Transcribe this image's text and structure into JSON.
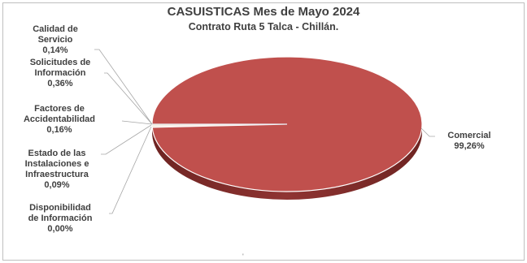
{
  "chart_data": {
    "type": "pie",
    "title": "CASUISTICAS Mes de Mayo 2024",
    "subtitle": "Contrato Ruta 5 Talca - Chillán.",
    "slices": [
      {
        "name": "Comercial",
        "value": 99.26,
        "label": "99,26%",
        "color": "#c0504d"
      },
      {
        "name": "Calidad de Servicio",
        "value": 0.14,
        "label": "0,14%",
        "color": "#f2dcdb"
      },
      {
        "name": "Solicitudes de Información",
        "value": 0.36,
        "label": "0,36%",
        "color": "#f5e4d6"
      },
      {
        "name": "Factores de Accidentabilidad",
        "value": 0.16,
        "label": "0,16%",
        "color": "#e8c49a"
      },
      {
        "name": "Estado de las Instalaciones e Infraestructura",
        "value": 0.09,
        "label": "0,09%",
        "color": "#dde8c6"
      },
      {
        "name": "Disponibilidad de Información",
        "value": 0.0,
        "label": "0,00%",
        "color": "#c9d7ec"
      }
    ],
    "labels": [
      {
        "lines": [
          "Calidad de",
          "Servicio",
          "0,14%"
        ]
      },
      {
        "lines": [
          "Solicitudes de",
          "Información",
          "0,36%"
        ]
      },
      {
        "lines": [
          "Factores de",
          "Accidentabilidad",
          "0,16%"
        ]
      },
      {
        "lines": [
          "Estado de las",
          "Instalaciones e",
          "Infraestructura",
          "0,09%"
        ]
      },
      {
        "lines": [
          "Disponibilidad",
          "de Información",
          "0,00%"
        ]
      },
      {
        "lines": [
          "Comercial",
          "99,26%"
        ]
      }
    ],
    "footer": "'"
  }
}
